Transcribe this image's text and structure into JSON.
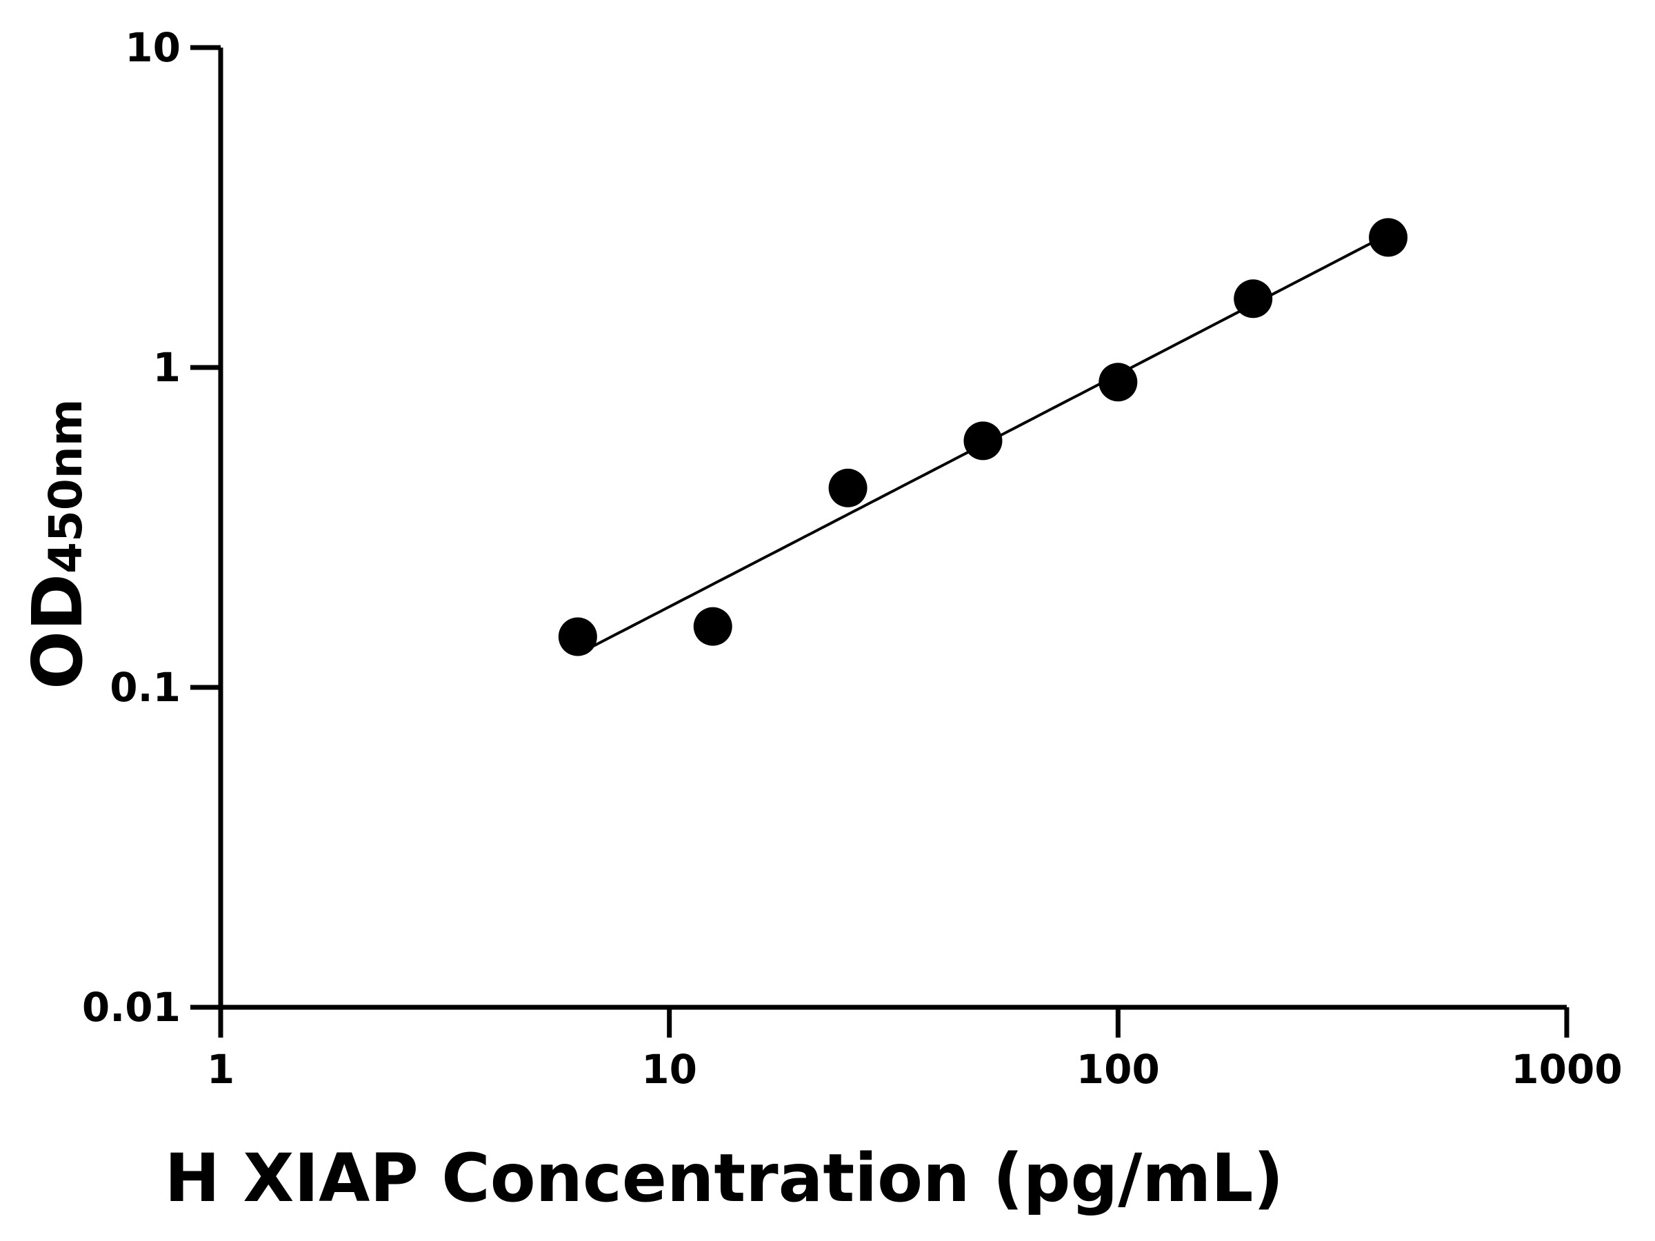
{
  "chart_data": {
    "type": "scatter",
    "title": "",
    "xlabel": "H XIAP Concentration (pg/mL)",
    "ylabel_main": "OD",
    "ylabel_sub": "450nm",
    "x_scale": "log",
    "y_scale": "log",
    "xlim": [
      1,
      1000
    ],
    "ylim": [
      0.01,
      10
    ],
    "x_ticks": [
      "1",
      "10",
      "100",
      "1000"
    ],
    "y_ticks": [
      "0.01",
      "0.1",
      "1",
      "10"
    ],
    "grid": false,
    "legend": "none",
    "fit_line": true,
    "colors": {
      "points": "#000000",
      "line": "#000000"
    },
    "points": [
      {
        "x": 6.25,
        "y": 0.144
      },
      {
        "x": 12.5,
        "y": 0.155
      },
      {
        "x": 25,
        "y": 0.42
      },
      {
        "x": 50,
        "y": 0.59
      },
      {
        "x": 100,
        "y": 0.9
      },
      {
        "x": 200,
        "y": 1.64
      },
      {
        "x": 400,
        "y": 2.55
      }
    ]
  }
}
